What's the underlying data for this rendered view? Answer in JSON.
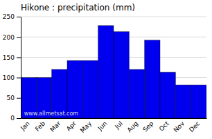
{
  "chart_data": {
    "type": "bar",
    "title": "Hikone : precipitation (mm)",
    "categories": [
      "Jan",
      "Feb",
      "Mar",
      "Apr",
      "May",
      "Jun",
      "Jul",
      "Aug",
      "Sep",
      "Oct",
      "Nov",
      "Dec"
    ],
    "values": [
      100,
      100,
      120,
      142,
      142,
      228,
      213,
      120,
      192,
      113,
      82,
      82
    ],
    "color": "#0000ee",
    "ylim": [
      0,
      250
    ],
    "yticks": [
      0,
      50,
      100,
      150,
      200,
      250
    ],
    "grid": true,
    "annotations": [
      "www.allmetsat.com"
    ]
  }
}
